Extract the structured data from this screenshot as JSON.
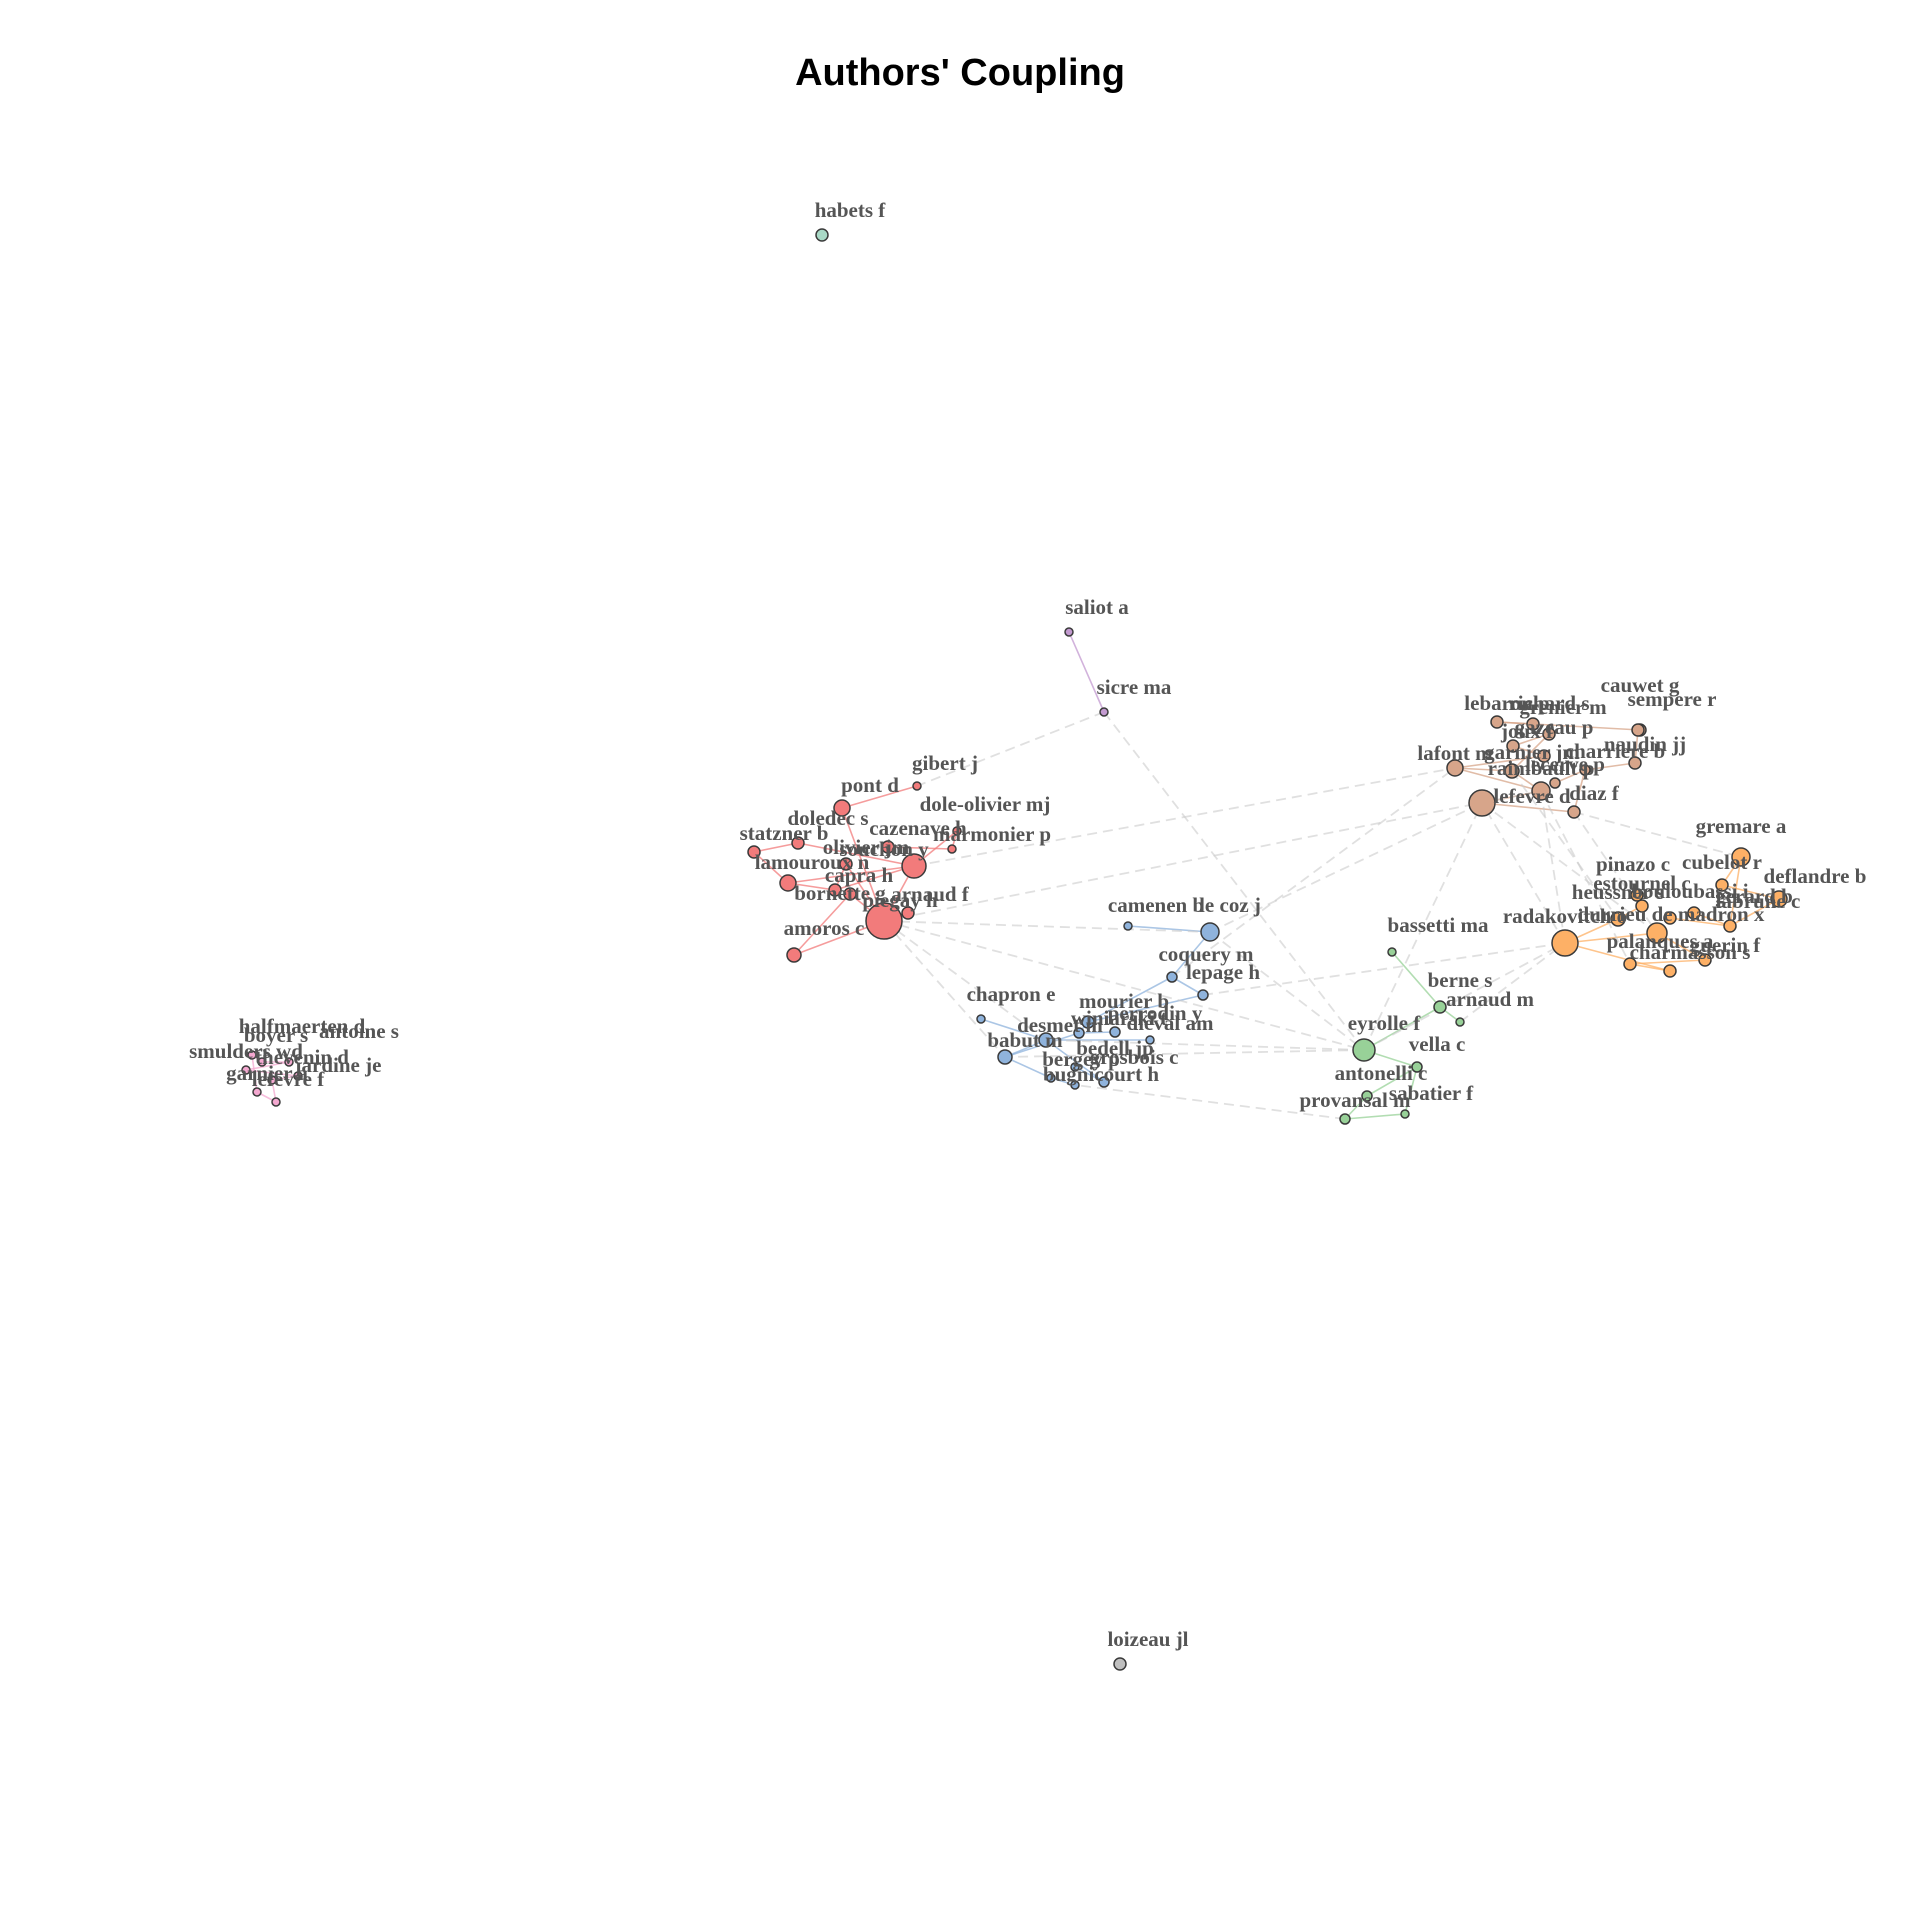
{
  "title": "Authors' Coupling",
  "clusters": {
    "red": "#f27b7b",
    "blue": "#8fb3dc",
    "green": "#98d198",
    "brown": "#d7a58a",
    "orange": "#fdb066",
    "pink": "#f4a8d0",
    "purple": "#c39ad0",
    "teal": "#a9d9c6",
    "grey": "#bfbfbf"
  },
  "nodes": [
    {
      "id": "habets f",
      "label": "habets f",
      "cluster": "teal",
      "size": 6
    },
    {
      "id": "saliot a",
      "label": "saliot a",
      "cluster": "purple",
      "size": 4
    },
    {
      "id": "sicre ma",
      "label": "sicre ma",
      "cluster": "purple",
      "size": 4
    },
    {
      "id": "loizeau jl",
      "label": "loizeau jl",
      "cluster": "grey",
      "size": 6
    },
    {
      "id": "gibert j",
      "label": "gibert j",
      "cluster": "red",
      "size": 4
    },
    {
      "id": "pont d",
      "label": "pont d",
      "cluster": "red",
      "size": 8
    },
    {
      "id": "dole-olivier mj",
      "label": "dole-olivier mj",
      "cluster": "red",
      "size": 4
    },
    {
      "id": "doledec s",
      "label": "doledec s",
      "cluster": "red",
      "size": 6
    },
    {
      "id": "statzner b",
      "label": "statzner b",
      "cluster": "red",
      "size": 6
    },
    {
      "id": "cazenave h",
      "label": "cazenave h",
      "cluster": "red",
      "size": 6
    },
    {
      "id": "marmonier p",
      "label": "marmonier p",
      "cluster": "red",
      "size": 4
    },
    {
      "id": "olivier jm",
      "label": "olivier jm",
      "cluster": "red",
      "size": 6
    },
    {
      "id": "lamouroux n",
      "label": "lamouroux n",
      "cluster": "red",
      "size": 8
    },
    {
      "id": "capra h",
      "label": "capra h",
      "cluster": "red",
      "size": 6
    },
    {
      "id": "souchon y",
      "label": "souchon y",
      "cluster": "red",
      "size": 12
    },
    {
      "id": "arnaud f",
      "label": "arnaud f",
      "cluster": "red",
      "size": 6
    },
    {
      "id": "bornette g",
      "label": "bornette g",
      "cluster": "red",
      "size": 6
    },
    {
      "id": "piegay h",
      "label": "piegay h",
      "cluster": "red",
      "size": 18
    },
    {
      "id": "amoros c",
      "label": "amoros c",
      "cluster": "red",
      "size": 7
    },
    {
      "id": "camenen b",
      "label": "camenen b",
      "cluster": "blue",
      "size": 4
    },
    {
      "id": "le coz j",
      "label": "le coz j",
      "cluster": "blue",
      "size": 9
    },
    {
      "id": "coquery m",
      "label": "coquery m",
      "cluster": "blue",
      "size": 5
    },
    {
      "id": "lepage h",
      "label": "lepage h",
      "cluster": "blue",
      "size": 5
    },
    {
      "id": "chapron e",
      "label": "chapron e",
      "cluster": "blue",
      "size": 4
    },
    {
      "id": "mourier b",
      "label": "mourier b",
      "cluster": "blue",
      "size": 6
    },
    {
      "id": "desmet m",
      "label": "desmet m",
      "cluster": "blue",
      "size": 7
    },
    {
      "id": "winiarski t",
      "label": "winiarski t",
      "cluster": "blue",
      "size": 5
    },
    {
      "id": "perrodin y",
      "label": "perrodin y",
      "cluster": "blue",
      "size": 5
    },
    {
      "id": "babut m",
      "label": "babut m",
      "cluster": "blue",
      "size": 7
    },
    {
      "id": "grosbois c",
      "label": "grosbois c",
      "cluster": "blue",
      "size": 5
    },
    {
      "id": "bedell jp",
      "label": "bedell jp",
      "cluster": "blue",
      "size": 4
    },
    {
      "id": "dieval am",
      "label": "dieval am",
      "cluster": "blue",
      "size": 4
    },
    {
      "id": "bergey p",
      "label": "bergey p",
      "cluster": "blue",
      "size": 4
    },
    {
      "id": "bugnicourt h",
      "label": "bugnicourt h",
      "cluster": "blue",
      "size": 4
    },
    {
      "id": "bassetti ma",
      "label": "bassetti ma",
      "cluster": "green",
      "size": 4
    },
    {
      "id": "berne s",
      "label": "berne s",
      "cluster": "green",
      "size": 6
    },
    {
      "id": "arnaud m",
      "label": "arnaud m",
      "cluster": "green",
      "size": 4
    },
    {
      "id": "eyrolle f",
      "label": "eyrolle f",
      "cluster": "green",
      "size": 11
    },
    {
      "id": "vella c",
      "label": "vella c",
      "cluster": "green",
      "size": 5
    },
    {
      "id": "antonelli c",
      "label": "antonelli c",
      "cluster": "green",
      "size": 5
    },
    {
      "id": "provansal m",
      "label": "provansal m",
      "cluster": "green",
      "size": 5
    },
    {
      "id": "sabatier f",
      "label": "sabatier f",
      "cluster": "green",
      "size": 4
    },
    {
      "id": "cauwet g",
      "label": "cauwet g",
      "cluster": "brown",
      "size": 6
    },
    {
      "id": "sempere r",
      "label": "sempere r",
      "cluster": "brown",
      "size": 6
    },
    {
      "id": "lebaron p",
      "label": "lebaron p",
      "cluster": "brown",
      "size": 6
    },
    {
      "id": "richard s",
      "label": "richard s",
      "cluster": "brown",
      "size": 6
    },
    {
      "id": "grenier m",
      "label": "grenier m",
      "cluster": "brown",
      "size": 6
    },
    {
      "id": "naudin jj",
      "label": "naudin jj",
      "cluster": "brown",
      "size": 6
    },
    {
      "id": "joux f",
      "label": "joux f",
      "cluster": "brown",
      "size": 6
    },
    {
      "id": "gazeau p",
      "label": "gazeau p",
      "cluster": "brown",
      "size": 6
    },
    {
      "id": "lafont m",
      "label": "lafont m",
      "cluster": "brown",
      "size": 8
    },
    {
      "id": "garnier jm",
      "label": "garnier jm",
      "cluster": "brown",
      "size": 7
    },
    {
      "id": "charriere b",
      "label": "charriere b",
      "cluster": "brown",
      "size": 5
    },
    {
      "id": "lecerve p",
      "label": "lecerve p",
      "cluster": "brown",
      "size": 5
    },
    {
      "id": "raimbault p",
      "label": "raimbault p",
      "cluster": "brown",
      "size": 9
    },
    {
      "id": "diaz f",
      "label": "diaz f",
      "cluster": "brown",
      "size": 6
    },
    {
      "id": "lefevre d",
      "label": "lefevre d",
      "cluster": "brown",
      "size": 13
    },
    {
      "id": "gremare a",
      "label": "gremare a",
      "cluster": "orange",
      "size": 9
    },
    {
      "id": "pinazo c",
      "label": "pinazo c",
      "cluster": "orange",
      "size": 6
    },
    {
      "id": "deflandre b",
      "label": "deflandre b",
      "cluster": "orange",
      "size": 8
    },
    {
      "id": "cubelot r",
      "label": "cubelot r",
      "cluster": "orange",
      "size": 6
    },
    {
      "id": "estournel c",
      "label": "estournel c",
      "cluster": "orange",
      "size": 6
    },
    {
      "id": "bouloubassi i",
      "label": "bouloubassi i",
      "cluster": "orange",
      "size": 6
    },
    {
      "id": "labrune c",
      "label": "labrune c",
      "cluster": "orange",
      "size": 6
    },
    {
      "id": "gerard b",
      "label": "gerard b",
      "cluster": "orange",
      "size": 6
    },
    {
      "id": "radakovitch o",
      "label": "radakovitch o",
      "cluster": "orange",
      "size": 13
    },
    {
      "id": "heussner s",
      "label": "heussner s",
      "cluster": "orange",
      "size": 7
    },
    {
      "id": "durrieu de madron x",
      "label": "durrieu de madron x",
      "cluster": "orange",
      "size": 10
    },
    {
      "id": "guerin f",
      "label": "guerin f",
      "cluster": "orange",
      "size": 6
    },
    {
      "id": "palanques a",
      "label": "palanques a",
      "cluster": "orange",
      "size": 6
    },
    {
      "id": "charmasson s",
      "label": "charmasson s",
      "cluster": "orange",
      "size": 6
    },
    {
      "id": "halfmaerten d",
      "label": "halfmaerten d",
      "cluster": "pink",
      "size": 4
    },
    {
      "id": "boyer s",
      "label": "boyer s",
      "cluster": "pink",
      "size": 4
    },
    {
      "id": "antoine s",
      "label": "antoine s",
      "cluster": "pink",
      "size": 4
    },
    {
      "id": "smulders wd",
      "label": "smulders wd",
      "cluster": "pink",
      "size": 4
    },
    {
      "id": "jardine je",
      "label": "jardine je",
      "cluster": "pink",
      "size": 4
    },
    {
      "id": "thevenin d",
      "label": "thevenin d",
      "cluster": "pink",
      "size": 4
    },
    {
      "id": "lefevre f",
      "label": "lefevre f",
      "cluster": "pink",
      "size": 4
    },
    {
      "id": "garnier a",
      "label": "garnier a",
      "cluster": "pink",
      "size": 4
    }
  ],
  "edges": [
    [
      "saliot a",
      "sicre ma"
    ],
    [
      "sicre ma",
      "gibert j"
    ],
    [
      "sicre ma",
      "eyrolle f"
    ],
    [
      "gibert j",
      "pont d"
    ],
    [
      "pont d",
      "piegay h"
    ],
    [
      "dole-olivier mj",
      "souchon y"
    ],
    [
      "doledec s",
      "statzner b"
    ],
    [
      "statzner b",
      "lamouroux n"
    ],
    [
      "lamouroux n",
      "capra h"
    ],
    [
      "capra h",
      "souchon y"
    ],
    [
      "souchon y",
      "piegay h"
    ],
    [
      "piegay h",
      "amoros c"
    ],
    [
      "piegay h",
      "bornette g"
    ],
    [
      "bornette g",
      "amoros c"
    ],
    [
      "arnaud f",
      "piegay h"
    ],
    [
      "olivier jm",
      "piegay h"
    ],
    [
      "cazenave h",
      "marmonier p"
    ],
    [
      "marmonier p",
      "dole-olivier mj"
    ],
    [
      "doledec s",
      "souchon y"
    ],
    [
      "lamouroux n",
      "souchon y"
    ],
    [
      "olivier jm",
      "capra h"
    ],
    [
      "camenen b",
      "le coz j"
    ],
    [
      "le coz j",
      "coquery m"
    ],
    [
      "coquery m",
      "lepage h"
    ],
    [
      "lepage h",
      "mourier b"
    ],
    [
      "chapron e",
      "desmet m"
    ],
    [
      "desmet m",
      "babut m"
    ],
    [
      "babut m",
      "bergey p"
    ],
    [
      "bergey p",
      "bugnicourt h"
    ],
    [
      "grosbois c",
      "bedell jp"
    ],
    [
      "winiarski t",
      "perrodin y"
    ],
    [
      "mourier b",
      "winiarski t"
    ],
    [
      "dieval am",
      "desmet m"
    ],
    [
      "desmet m",
      "grosbois c"
    ],
    [
      "babut m",
      "winiarski t"
    ],
    [
      "coquery m",
      "mourier b"
    ],
    [
      "bassetti ma",
      "berne s"
    ],
    [
      "berne s",
      "arnaud m"
    ],
    [
      "eyrolle f",
      "vella c"
    ],
    [
      "vella c",
      "antonelli c"
    ],
    [
      "antonelli c",
      "provansal m"
    ],
    [
      "provansal m",
      "sabatier f"
    ],
    [
      "eyrolle f",
      "berne s"
    ],
    [
      "sabatier f",
      "vella c"
    ],
    [
      "cauwet g",
      "sempere r"
    ],
    [
      "sempere r",
      "naudin jj"
    ],
    [
      "lebaron p",
      "richard s"
    ],
    [
      "grenier m",
      "joux f"
    ],
    [
      "joux f",
      "gazeau p"
    ],
    [
      "gazeau p",
      "lafont m"
    ],
    [
      "lafont m",
      "garnier jm"
    ],
    [
      "garnier jm",
      "raimbault p"
    ],
    [
      "raimbault p",
      "lefevre d"
    ],
    [
      "lefevre d",
      "diaz f"
    ],
    [
      "diaz f",
      "charriere b"
    ],
    [
      "charriere b",
      "lecerve p"
    ],
    [
      "cauwet g",
      "lebaron p"
    ],
    [
      "naudin jj",
      "charriere b"
    ],
    [
      "lafont m",
      "raimbault p"
    ],
    [
      "grenier m",
      "garnier jm"
    ],
    [
      "gremare a",
      "cubelot r"
    ],
    [
      "cubelot r",
      "deflandre b"
    ],
    [
      "pinazo c",
      "estournel c"
    ],
    [
      "estournel c",
      "heussner s"
    ],
    [
      "heussner s",
      "radakovitch o"
    ],
    [
      "radakovitch o",
      "durrieu de madron x"
    ],
    [
      "durrieu de madron x",
      "guerin f"
    ],
    [
      "guerin f",
      "palanques a"
    ],
    [
      "palanques a",
      "charmasson s"
    ],
    [
      "labrune c",
      "gerard b"
    ],
    [
      "bouloubassi i",
      "labrune c"
    ],
    [
      "gremare a",
      "labrune c"
    ],
    [
      "radakovitch o",
      "charmasson s"
    ],
    [
      "deflandre b",
      "labrune c"
    ],
    [
      "halfmaerten d",
      "boyer s"
    ],
    [
      "boyer s",
      "antoine s"
    ],
    [
      "antoine s",
      "smulders wd"
    ],
    [
      "smulders wd",
      "jardine je"
    ],
    [
      "jardine je",
      "thevenin d"
    ],
    [
      "thevenin d",
      "lefevre f"
    ],
    [
      "lefevre f",
      "garnier a"
    ],
    [
      "garnier a",
      "halfmaerten d"
    ],
    [
      "piegay h",
      "le coz j"
    ],
    [
      "piegay h",
      "desmet m"
    ],
    [
      "piegay h",
      "babut m"
    ],
    [
      "souchon y",
      "lafont m"
    ],
    [
      "piegay h",
      "raimbault p"
    ],
    [
      "le coz j",
      "lefevre d"
    ],
    [
      "coquery m",
      "lafont m"
    ],
    [
      "eyrolle f",
      "radakovitch o"
    ],
    [
      "eyrolle f",
      "lefevre d"
    ],
    [
      "eyrolle f",
      "desmet m"
    ],
    [
      "eyrolle f",
      "babut m"
    ],
    [
      "radakovitch o",
      "lefevre d"
    ],
    [
      "lefevre d",
      "durrieu de madron x"
    ],
    [
      "diaz f",
      "gremare a"
    ],
    [
      "raimbault p",
      "radakovitch o"
    ],
    [
      "arnaud m",
      "radakovitch o"
    ],
    [
      "provansal m",
      "bugnicourt h"
    ],
    [
      "lepage h",
      "radakovitch o"
    ],
    [
      "le coz j",
      "eyrolle f"
    ],
    [
      "piegay h",
      "eyrolle f"
    ],
    [
      "raimbault p",
      "palanques a"
    ],
    [
      "garnier jm",
      "heussner s"
    ],
    [
      "diaz f",
      "durrieu de madron x"
    ]
  ]
}
